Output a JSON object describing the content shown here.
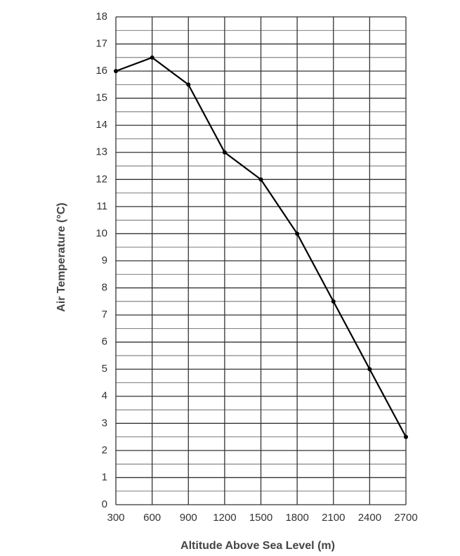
{
  "chart_data": {
    "type": "line",
    "x_label": "Altitude Above Sea Level (m)",
    "y_label": "Air Temperature (°C)",
    "x": [
      300,
      600,
      900,
      1200,
      1500,
      1800,
      2100,
      2400,
      2700
    ],
    "series": [
      {
        "values": [
          16,
          16.5,
          15.5,
          13,
          12,
          10,
          7.5,
          5,
          2.5
        ],
        "color": "#000000"
      }
    ],
    "xlim": [
      300,
      2700
    ],
    "xticks": [
      300,
      600,
      900,
      1200,
      1500,
      1800,
      2100,
      2400,
      2700
    ],
    "ylim": [
      0,
      18
    ],
    "yticks": [
      0,
      1,
      2,
      3,
      4,
      5,
      6,
      7,
      8,
      9,
      10,
      11,
      12,
      13,
      14,
      15,
      16,
      17,
      18
    ],
    "grid": true
  }
}
